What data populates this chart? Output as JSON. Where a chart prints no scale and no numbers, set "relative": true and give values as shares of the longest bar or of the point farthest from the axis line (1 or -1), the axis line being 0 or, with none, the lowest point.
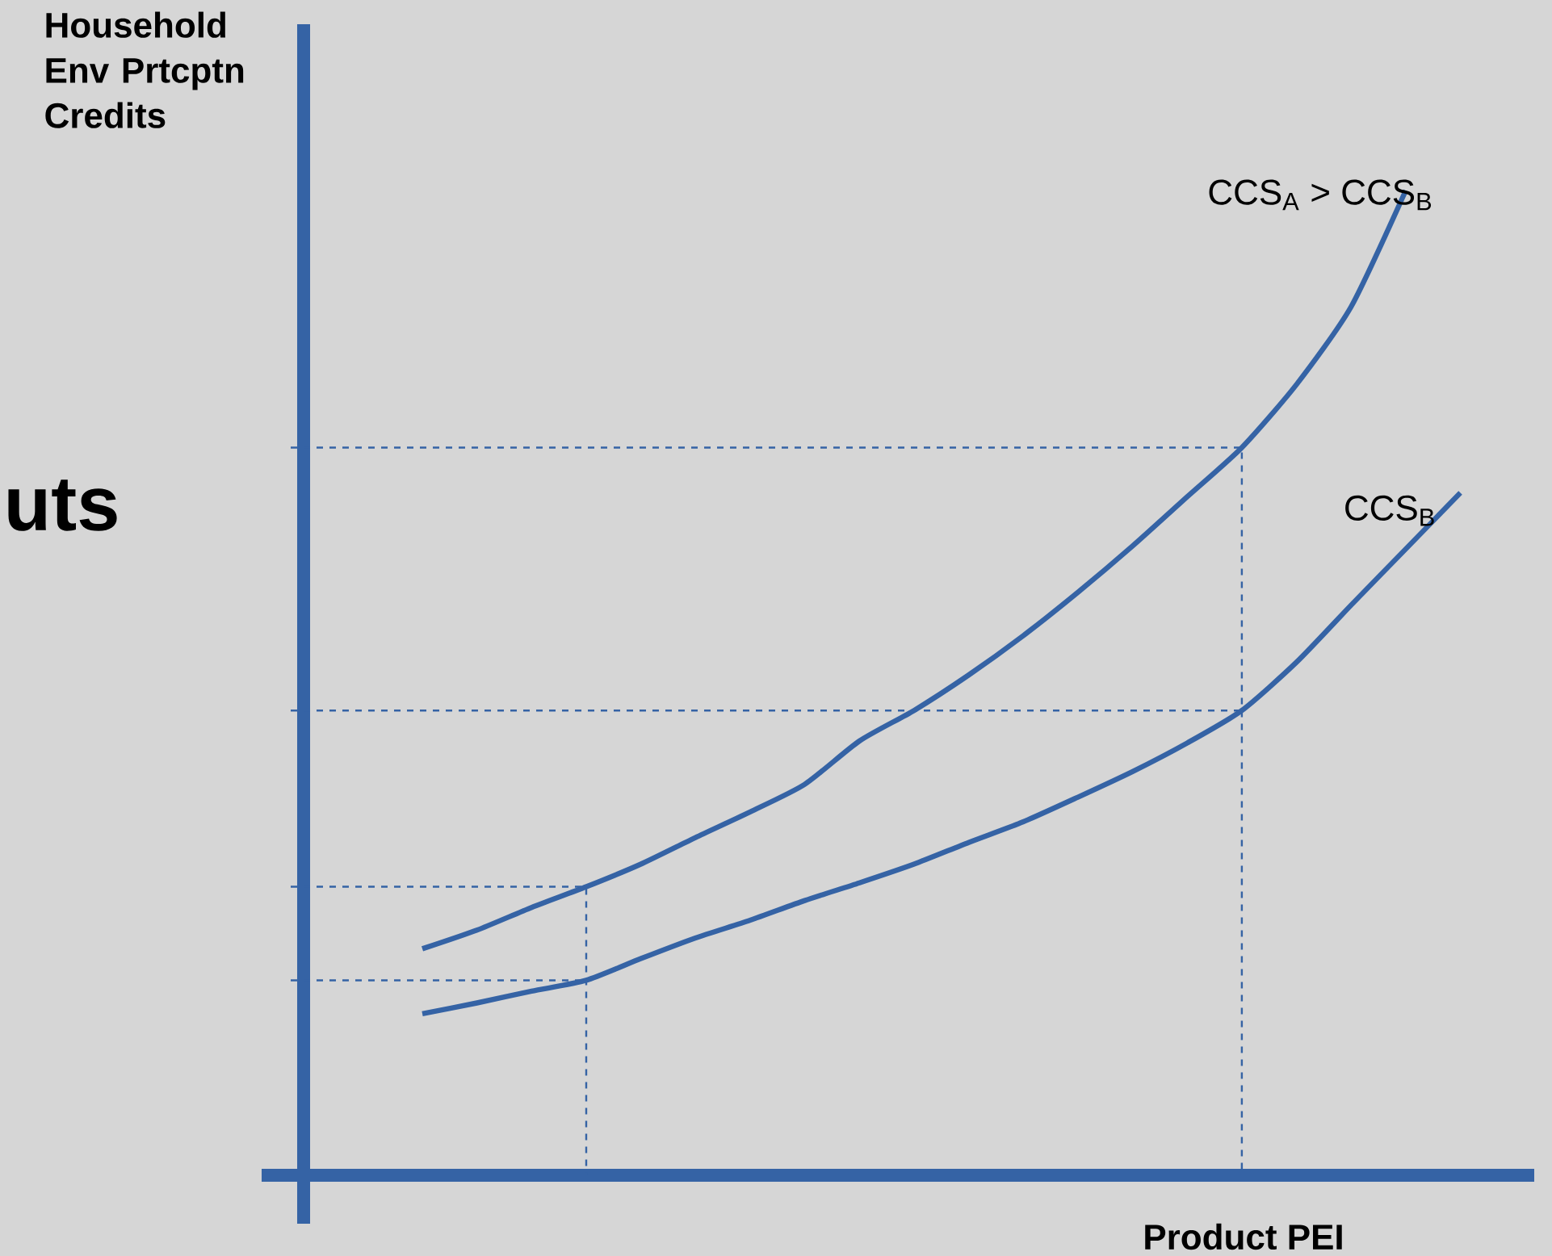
{
  "chart_data": {
    "type": "line",
    "relative": true,
    "legend": false,
    "marker": "none",
    "xlabel": "Product PEI",
    "ylabel": "Household Env Prtcptn Credits",
    "annotations": [
      "uts"
    ],
    "categories": [
      null,
      null,
      null,
      null,
      null,
      null,
      null,
      null,
      null,
      null,
      null,
      null,
      null,
      null,
      null,
      null,
      null,
      null,
      null,
      null
    ],
    "series": [
      {
        "name": "CCS$_{A}$ > CCS$_{B}$",
        "color": "#3563a5",
        "values": [
          0.23,
          0.249,
          0.272,
          0.293,
          0.316,
          0.343,
          0.369,
          0.397,
          0.441,
          0.472,
          0.508,
          0.548,
          0.592,
          0.639,
          0.689,
          0.739,
          0.803,
          0.882,
          1,
          null
        ]
      },
      {
        "name": "CCS$_{B}$",
        "color": "#3563a5",
        "values": [
          0.164,
          0.175,
          0.187,
          0.198,
          0.22,
          0.241,
          0.259,
          0.279,
          0.297,
          0.316,
          0.338,
          0.359,
          0.384,
          0.41,
          0.439,
          0.472,
          0.521,
          0.579,
          0.636,
          0.693
        ]
      }
    ],
    "ref_lines": [
      {
        "axis": "y",
        "value": 0.739,
        "color": "#3563a5",
        "line_style": "dashed"
      },
      {
        "axis": "y",
        "value": 0.472,
        "color": "#3563a5",
        "line_style": "dashed"
      },
      {
        "axis": "y",
        "value": 0.293,
        "color": "#3563a5",
        "line_style": "dashed"
      },
      {
        "axis": "y",
        "value": 0.198,
        "color": "#3563a5",
        "line_style": "dashed"
      }
    ]
  }
}
